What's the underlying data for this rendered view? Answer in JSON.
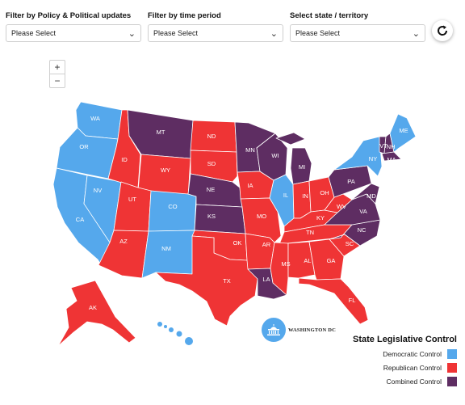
{
  "filters": [
    {
      "label": "Filter by Policy & Political updates",
      "value": "Please Select"
    },
    {
      "label": "Filter by time period",
      "value": "Please Select"
    },
    {
      "label": "Select state / territory",
      "value": "Please Select"
    }
  ],
  "zoom": {
    "in": "+",
    "out": "−"
  },
  "icons": {
    "reset": "refresh-icon",
    "dropdown": "chevron-down-icon",
    "capitol": "capitol-building-icon"
  },
  "colors": {
    "democratic": "#55a8ec",
    "republican": "#ef3435",
    "combined": "#5e2d62"
  },
  "dc": {
    "label": "WASHINGTON DC"
  },
  "legend": {
    "title": "State Legislative Control",
    "items": [
      {
        "label": "Democratic Control",
        "party": "democratic"
      },
      {
        "label": "Republican Control",
        "party": "republican"
      },
      {
        "label": "Combined Control",
        "party": "combined"
      }
    ]
  },
  "states": [
    {
      "abbr": "WA",
      "party": "democratic"
    },
    {
      "abbr": "OR",
      "party": "democratic"
    },
    {
      "abbr": "CA",
      "party": "democratic"
    },
    {
      "abbr": "NV",
      "party": "democratic"
    },
    {
      "abbr": "ID",
      "party": "republican"
    },
    {
      "abbr": "MT",
      "party": "combined"
    },
    {
      "abbr": "WY",
      "party": "republican"
    },
    {
      "abbr": "UT",
      "party": "republican"
    },
    {
      "abbr": "AZ",
      "party": "republican"
    },
    {
      "abbr": "CO",
      "party": "democratic"
    },
    {
      "abbr": "NM",
      "party": "democratic"
    },
    {
      "abbr": "ND",
      "party": "republican"
    },
    {
      "abbr": "SD",
      "party": "republican"
    },
    {
      "abbr": "NE",
      "party": "combined"
    },
    {
      "abbr": "KS",
      "party": "combined"
    },
    {
      "abbr": "OK",
      "party": "republican"
    },
    {
      "abbr": "TX",
      "party": "republican"
    },
    {
      "abbr": "MN",
      "party": "combined"
    },
    {
      "abbr": "IA",
      "party": "republican"
    },
    {
      "abbr": "MO",
      "party": "republican"
    },
    {
      "abbr": "AR",
      "party": "republican"
    },
    {
      "abbr": "LA",
      "party": "combined"
    },
    {
      "abbr": "WI",
      "party": "combined"
    },
    {
      "abbr": "IL",
      "party": "democratic"
    },
    {
      "abbr": "MI",
      "party": "combined"
    },
    {
      "abbr": "IN",
      "party": "republican"
    },
    {
      "abbr": "OH",
      "party": "republican"
    },
    {
      "abbr": "KY",
      "party": "republican"
    },
    {
      "abbr": "TN",
      "party": "republican"
    },
    {
      "abbr": "MS",
      "party": "republican"
    },
    {
      "abbr": "AL",
      "party": "republican"
    },
    {
      "abbr": "GA",
      "party": "republican"
    },
    {
      "abbr": "FL",
      "party": "republican"
    },
    {
      "abbr": "SC",
      "party": "republican"
    },
    {
      "abbr": "NC",
      "party": "combined"
    },
    {
      "abbr": "VA",
      "party": "combined"
    },
    {
      "abbr": "WV",
      "party": "republican"
    },
    {
      "abbr": "PA",
      "party": "combined"
    },
    {
      "abbr": "NY",
      "party": "democratic"
    },
    {
      "abbr": "VT",
      "party": "combined"
    },
    {
      "abbr": "NH",
      "party": "combined"
    },
    {
      "abbr": "ME",
      "party": "democratic"
    },
    {
      "abbr": "MA",
      "party": "combined"
    },
    {
      "abbr": "MD",
      "party": "combined"
    },
    {
      "abbr": "AK",
      "party": "republican"
    }
  ]
}
